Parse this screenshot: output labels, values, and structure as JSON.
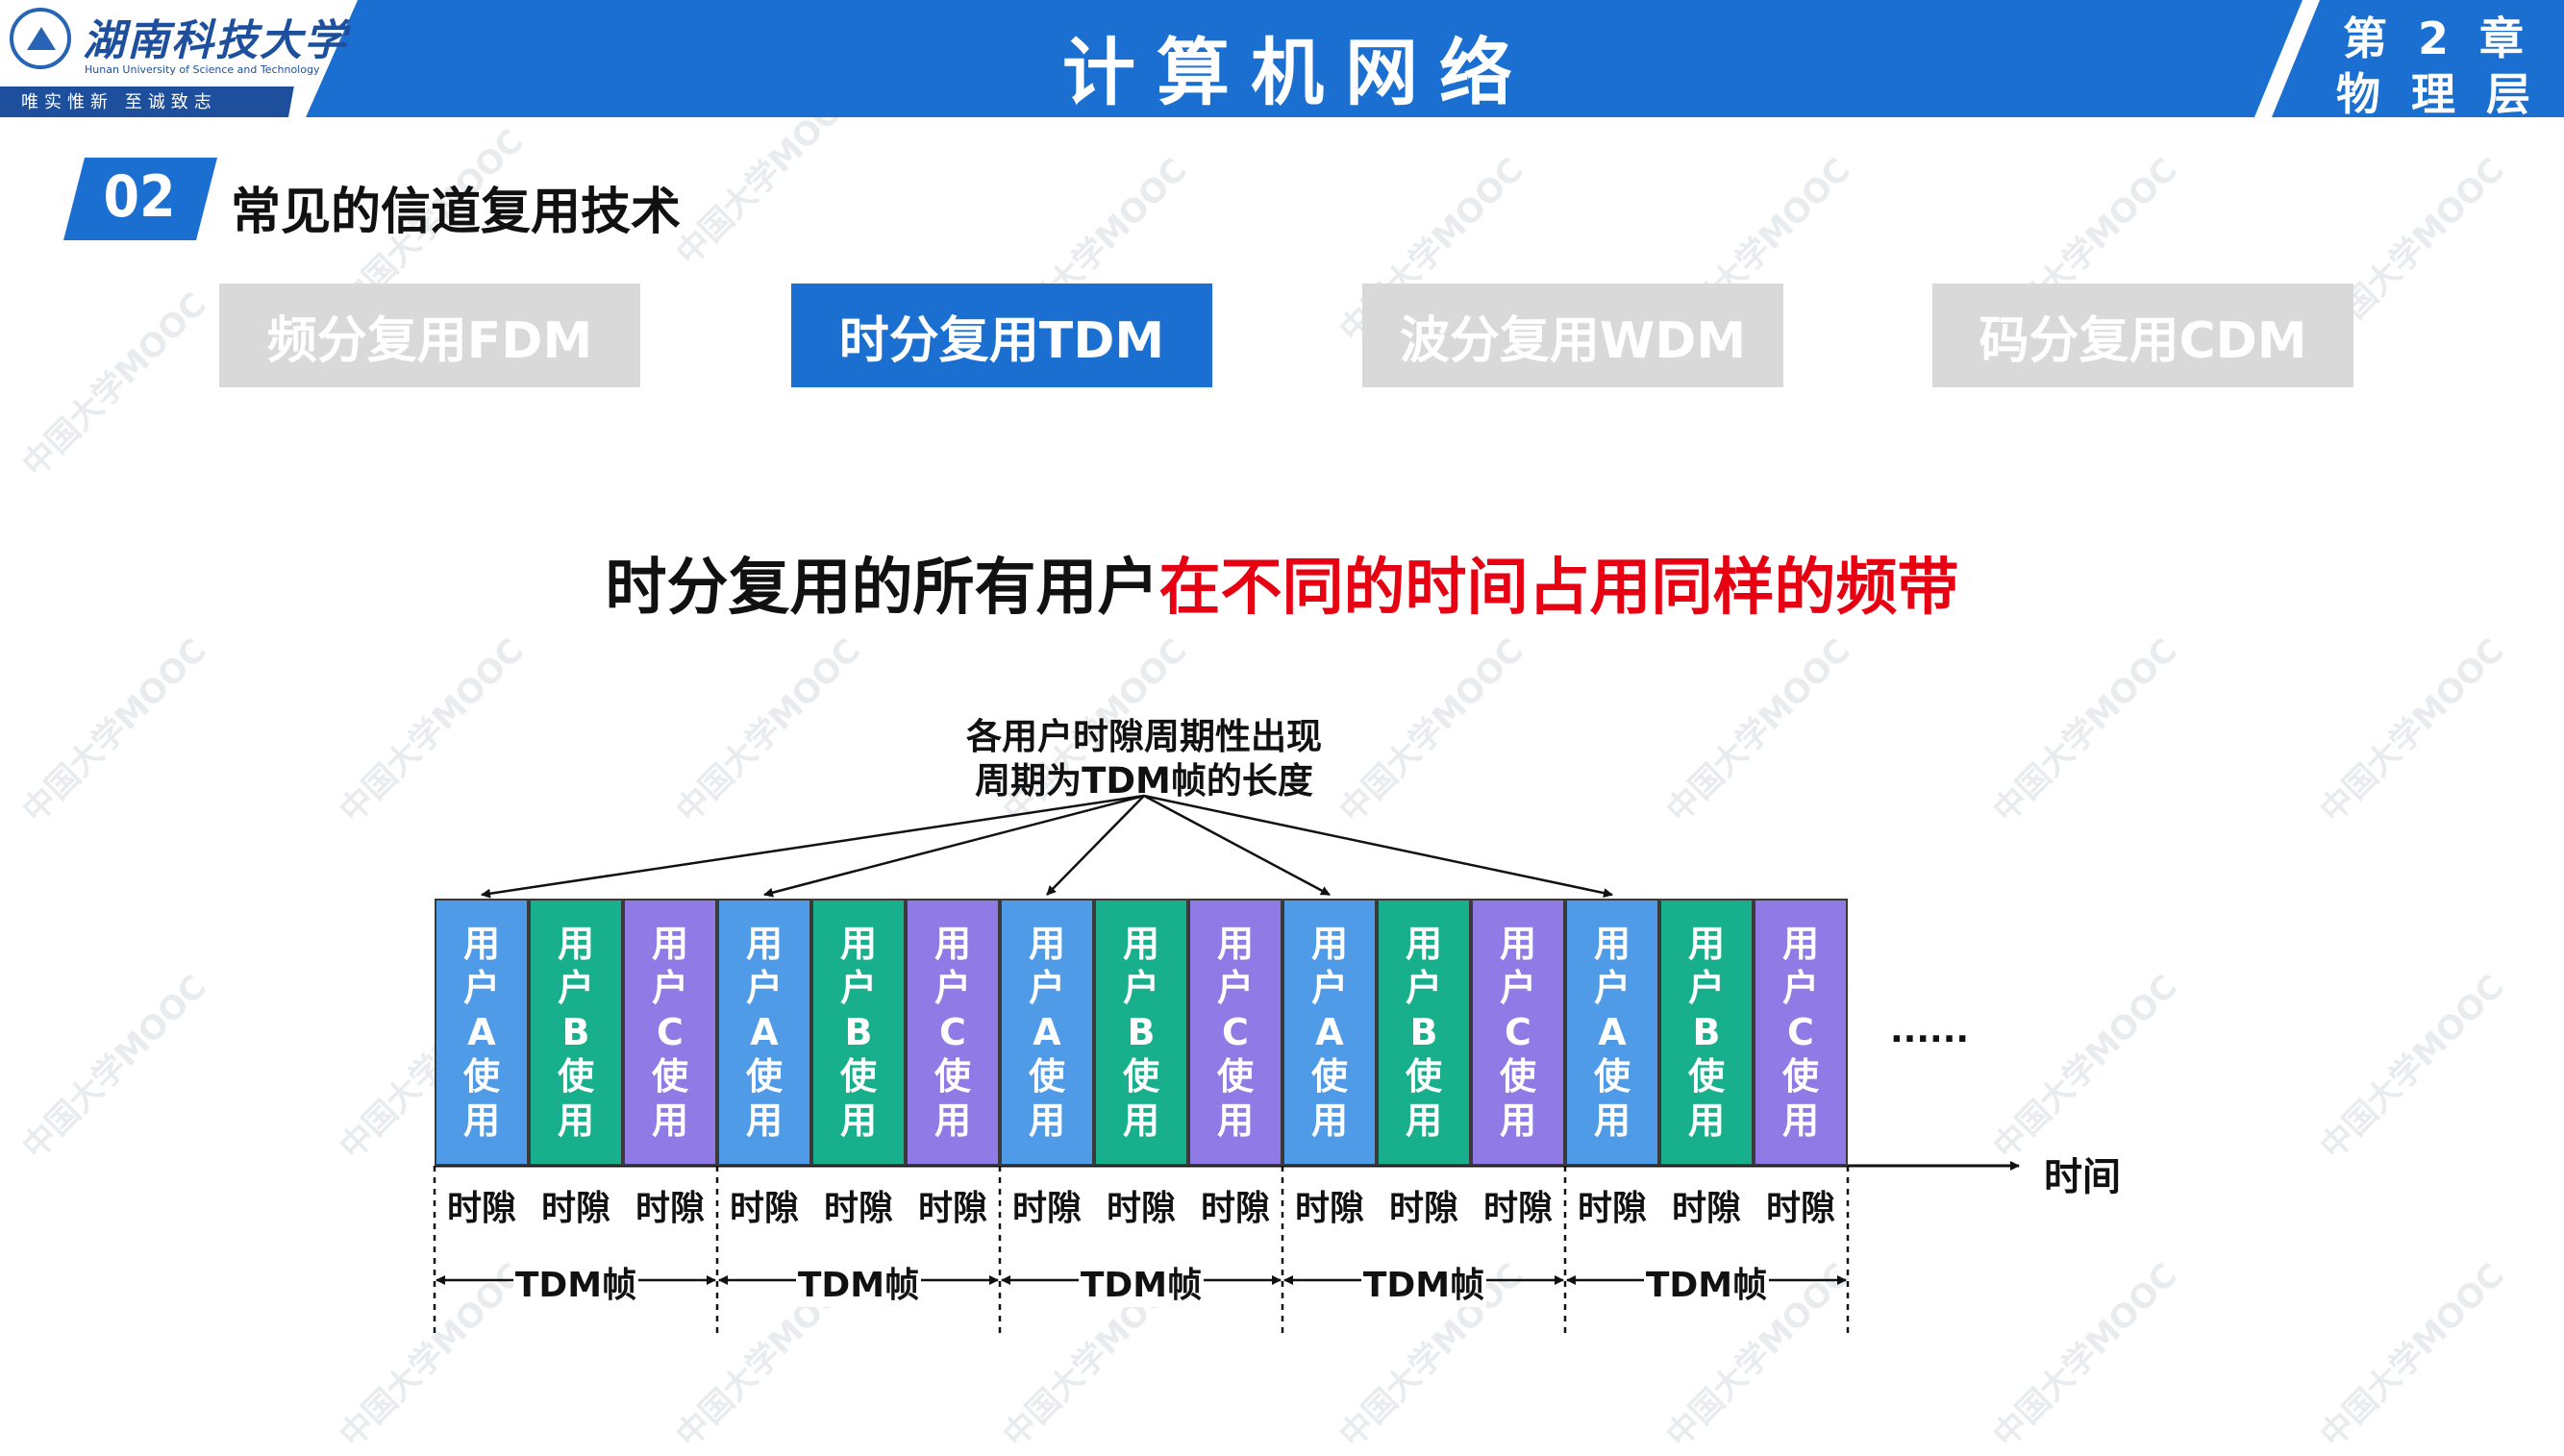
{
  "header": {
    "university_cn": "湖南科技大学",
    "university_en": "Hunan University of Science and Technology",
    "motto": "唯实惟新  至诚致志",
    "course_title": "计算机网络",
    "chapter_line1": "第 2 章",
    "chapter_line2": "物 理 层",
    "colors": {
      "header_blue": "#1a6fd1",
      "accent_dark": "#1d4f9c"
    }
  },
  "watermark": {
    "text": "中国大学MOOC"
  },
  "section": {
    "number": "02",
    "title": "常见的信道复用技术"
  },
  "tabs": [
    {
      "label": "频分复用FDM",
      "active": false
    },
    {
      "label": "时分复用TDM",
      "active": true
    },
    {
      "label": "波分复用WDM",
      "active": false
    },
    {
      "label": "码分复用CDM",
      "active": false
    }
  ],
  "headline": {
    "part1": "时分复用的所有用户",
    "part2": "在不同的时间占用同样的频带",
    "colors": {
      "part1": "#111111",
      "part2": "#e60012"
    }
  },
  "annotation": {
    "line1": "各用户时隙周期性出现",
    "line2": "周期为TDM帧的长度"
  },
  "diagram": {
    "users": [
      {
        "letter": "A",
        "color": "#4f9be8"
      },
      {
        "letter": "B",
        "color": "#18b08c"
      },
      {
        "letter": "C",
        "color": "#8f7ae6"
      }
    ],
    "slot_text_prefix": [
      "用",
      "户"
    ],
    "slot_text_suffix": [
      "使",
      "用"
    ],
    "slot_label": "时隙",
    "frame_label": "TDM帧",
    "frame_count": 5,
    "ellipsis": "......",
    "time_axis_label": "时间"
  }
}
